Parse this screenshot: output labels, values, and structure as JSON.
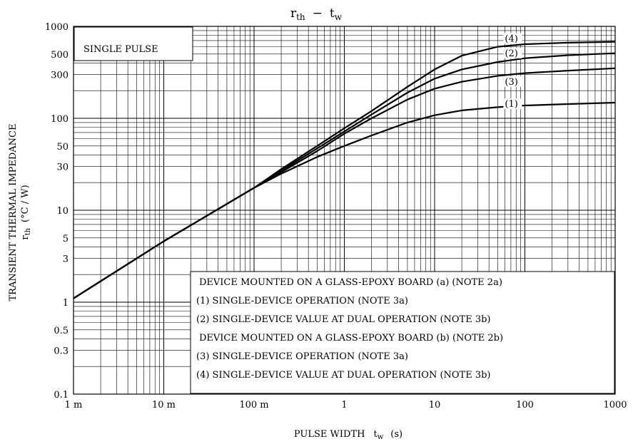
{
  "chart_data": {
    "type": "line",
    "title": "rth − tw",
    "title_main": "r",
    "title_main_sub": "th",
    "title_dash": "−",
    "title_t": "t",
    "title_t_sub": "w",
    "xlabel": "PULSE WIDTH",
    "xlabel_var": "t",
    "xlabel_var_sub": "w",
    "xlabel_unit": "(s)",
    "ylabel_line1": "TRANSIENT THERMAL IMPEDANCE",
    "ylabel_line2_var": "r",
    "ylabel_line2_sub": "th",
    "ylabel_line2_unit": "(°C / W)",
    "x_scale": "log",
    "y_scale": "log",
    "xlim": [
      0.001,
      1000
    ],
    "ylim": [
      0.1,
      1000
    ],
    "grid": true,
    "x_ticks": [
      {
        "value": 0.001,
        "label": "1 m"
      },
      {
        "value": 0.01,
        "label": "10 m"
      },
      {
        "value": 0.1,
        "label": "100 m"
      },
      {
        "value": 1,
        "label": "1"
      },
      {
        "value": 10,
        "label": "10"
      },
      {
        "value": 100,
        "label": "100"
      },
      {
        "value": 1000,
        "label": "1000"
      }
    ],
    "y_ticks": [
      {
        "value": 0.1,
        "label": "0.1"
      },
      {
        "value": 0.3,
        "label": "0.3"
      },
      {
        "value": 0.5,
        "label": "0.5"
      },
      {
        "value": 1,
        "label": "1"
      },
      {
        "value": 3,
        "label": "3"
      },
      {
        "value": 5,
        "label": "5"
      },
      {
        "value": 10,
        "label": "10"
      },
      {
        "value": 30,
        "label": "30"
      },
      {
        "value": 50,
        "label": "50"
      },
      {
        "value": 100,
        "label": "100"
      },
      {
        "value": 300,
        "label": "300"
      },
      {
        "value": 500,
        "label": "500"
      },
      {
        "value": 1000,
        "label": "1000"
      }
    ],
    "annotation": "SINGLE PULSE",
    "legend": [
      "DEVICE MOUNTED ON A GLASS-EPOXY BOARD (a) (NOTE 2a)",
      "(1)   SINGLE-DEVICE OPERATION (NOTE 3a)",
      "(2)   SINGLE-DEVICE VALUE AT DUAL OPERATION (NOTE 3b)",
      "DEVICE MOUNTED ON A GLASS-EPOXY BOARD (b) (NOTE 2b)",
      "(3)   SINGLE-DEVICE OPERATION (NOTE 3a)",
      "(4)   SINGLE-DEVICE VALUE AT DUAL OPERATION (NOTE 3b)"
    ],
    "series": [
      {
        "name": "(1)",
        "x": [
          0.001,
          0.01,
          0.1,
          0.2,
          0.5,
          1,
          2,
          5,
          10,
          20,
          50,
          100,
          300,
          1000
        ],
        "y": [
          1.1,
          4.6,
          17.5,
          25,
          38,
          50,
          65,
          90,
          108,
          122,
          132,
          138,
          143,
          148
        ]
      },
      {
        "name": "(2)",
        "x": [
          0.001,
          0.01,
          0.1,
          0.2,
          0.5,
          1,
          2,
          5,
          10,
          20,
          50,
          100,
          300,
          1000
        ],
        "y": [
          1.1,
          4.6,
          17.5,
          27,
          47,
          72,
          110,
          190,
          270,
          340,
          410,
          450,
          485,
          510
        ]
      },
      {
        "name": "(3)",
        "x": [
          0.001,
          0.01,
          0.1,
          0.2,
          0.5,
          1,
          2,
          5,
          10,
          20,
          50,
          100,
          300,
          1000
        ],
        "y": [
          1.1,
          4.6,
          17.5,
          26,
          44,
          68,
          100,
          160,
          210,
          250,
          290,
          310,
          330,
          350
        ]
      },
      {
        "name": "(4)",
        "x": [
          0.001,
          0.01,
          0.1,
          0.2,
          0.5,
          1,
          2,
          5,
          10,
          20,
          50,
          100,
          300,
          1000
        ],
        "y": [
          1.1,
          4.6,
          17.5,
          28,
          50,
          78,
          120,
          220,
          340,
          480,
          600,
          640,
          665,
          680
        ]
      }
    ],
    "series_labels": [
      {
        "name": "(1)",
        "x": 60,
        "y": 140
      },
      {
        "name": "(2)",
        "x": 60,
        "y": 500
      },
      {
        "name": "(3)",
        "x": 60,
        "y": 245
      },
      {
        "name": "(4)",
        "x": 60,
        "y": 720
      }
    ]
  }
}
